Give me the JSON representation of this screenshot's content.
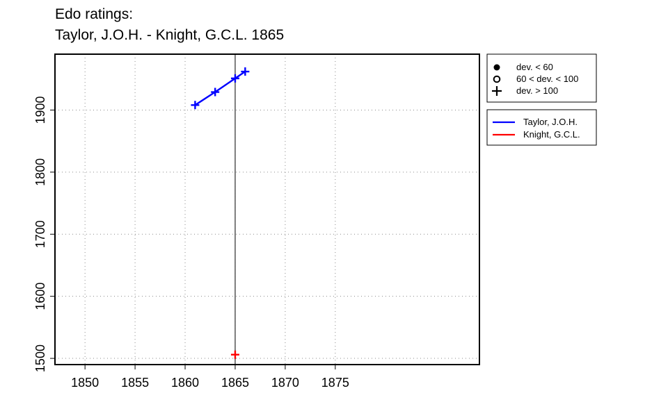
{
  "title_line1": "Edo ratings:",
  "title_line2": "Taylor, J.O.H. - Knight, G.C.L. 1865",
  "chart_data": {
    "type": "line",
    "x_ticks": [
      1850,
      1855,
      1860,
      1865,
      1870,
      1875
    ],
    "y_ticks": [
      1500,
      1600,
      1700,
      1800,
      1900
    ],
    "xlim": [
      1847,
      1889.4
    ],
    "ylim": [
      1490,
      1990
    ],
    "grid": true,
    "reference_line_x": 1865,
    "series": [
      {
        "name": "Taylor, J.O.H.",
        "color": "#0000ff",
        "marker": "plus",
        "points": [
          {
            "x": 1861,
            "y": 1908
          },
          {
            "x": 1863,
            "y": 1929
          },
          {
            "x": 1865,
            "y": 1951
          },
          {
            "x": 1866,
            "y": 1962
          }
        ]
      },
      {
        "name": "Knight, G.C.L.",
        "color": "#ff0000",
        "marker": "plus",
        "points": [
          {
            "x": 1865,
            "y": 1506
          }
        ]
      }
    ],
    "legend_markers": [
      {
        "symbol": "filled-circle",
        "label": "dev. < 60"
      },
      {
        "symbol": "open-circle",
        "label": "60 < dev. < 100"
      },
      {
        "symbol": "plus",
        "label": "dev. > 100"
      }
    ],
    "legend_placement": "top-right, outside plot"
  }
}
